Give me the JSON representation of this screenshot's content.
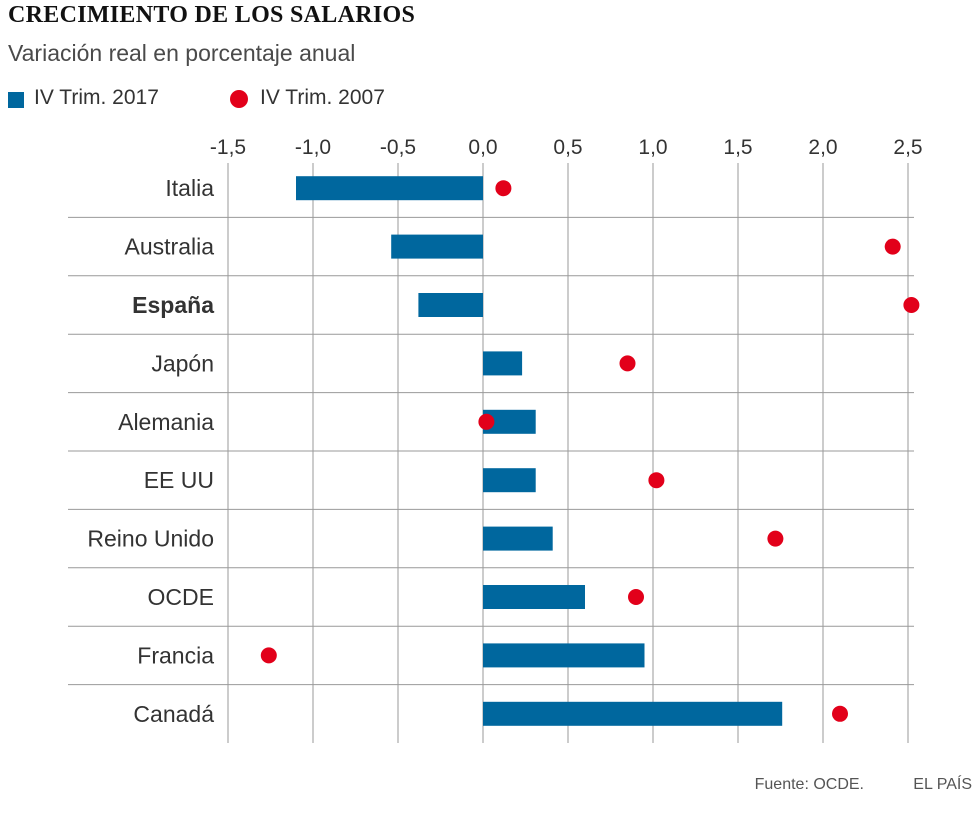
{
  "title": "CRECIMIENTO DE LOS SALARIOS",
  "subtitle": "Variación real en porcentaje anual",
  "source": "Fuente: OCDE.",
  "brand": "EL PAÍS",
  "colors": {
    "bar": "#00679e",
    "dot": "#e2001a",
    "grid": "#9a9a9a",
    "divider": "#999999"
  },
  "chart_data": {
    "type": "bar",
    "orientation": "horizontal",
    "categories": [
      "Italia",
      "Australia",
      "España",
      "Japón",
      "Alemania",
      "EE UU",
      "Reino Unido",
      "OCDE",
      "Francia",
      "Canadá"
    ],
    "highlight_category": "España",
    "series": [
      {
        "name": "IV Trim. 2017",
        "mark": "bar",
        "values": [
          -1.1,
          -0.54,
          -0.38,
          0.23,
          0.31,
          0.31,
          0.41,
          0.6,
          0.95,
          1.76
        ]
      },
      {
        "name": "IV Trim. 2007",
        "mark": "dot",
        "values": [
          0.12,
          2.41,
          2.52,
          0.85,
          0.02,
          1.02,
          1.72,
          0.9,
          -1.26,
          2.1
        ]
      }
    ],
    "xlim": [
      -1.5,
      2.5
    ],
    "xticks": [
      -1.5,
      -1.0,
      -0.5,
      0.0,
      0.5,
      1.0,
      1.5,
      2.0,
      2.5
    ],
    "xtick_labels": [
      "-1,5",
      "-1,0",
      "-0,5",
      "0,0",
      "0,5",
      "1,0",
      "1,5",
      "2,0",
      "2,5"
    ],
    "legend_position": "top-left",
    "grid": true
  }
}
